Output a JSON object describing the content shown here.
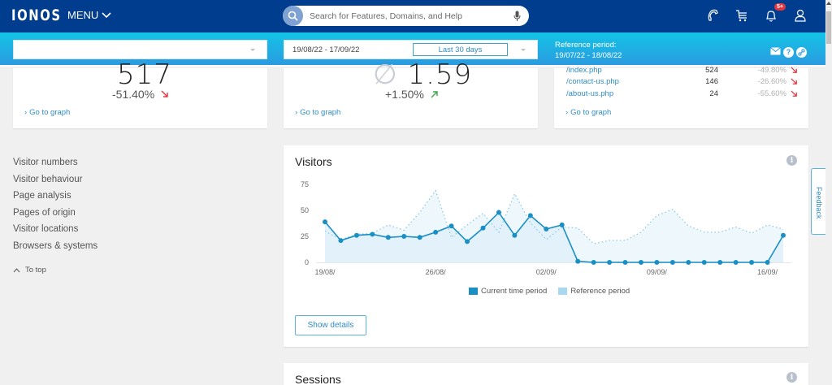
{
  "header": {
    "logo": "IONOS",
    "menu_label": "MENU",
    "search_placeholder": "Search for Features, Domains, and Help",
    "notification_badge": "5+",
    "icons": [
      "phone-icon",
      "cart-icon",
      "bell-icon",
      "user-icon"
    ]
  },
  "filters": {
    "site_select_value": "",
    "date_range": "19/08/22 - 17/09/22",
    "period_label": "Last 30 days",
    "reference_label": "Reference period:",
    "reference_range": "19/07/22 - 18/08/22",
    "icons": [
      "mail-icon",
      "help-icon",
      "link-icon"
    ]
  },
  "summary_cards": [
    {
      "value": "517",
      "change": "-51.40%",
      "trend": "down",
      "link": "Go to graph"
    },
    {
      "prefix": "∅",
      "value": "1.59",
      "change": "+1.50%",
      "trend": "up",
      "link": "Go to graph"
    },
    {
      "pages": [
        {
          "url": "/index.php",
          "count": "524",
          "change": "-49.80%",
          "trend": "down"
        },
        {
          "url": "/contact-us.php",
          "count": "146",
          "change": "-26.60%",
          "trend": "down"
        },
        {
          "url": "/about-us.php",
          "count": "24",
          "change": "-55.60%",
          "trend": "down"
        }
      ],
      "link": "Go to graph"
    }
  ],
  "sidenav": {
    "items": [
      "Visitor numbers",
      "Visitor behaviour",
      "Page analysis",
      "Pages of origin",
      "Visitor locations",
      "Browsers & systems"
    ],
    "to_top": "To top"
  },
  "visitors_card": {
    "title": "Visitors",
    "show_details": "Show details"
  },
  "sessions_card": {
    "title": "Sessions"
  },
  "feedback_label": "Feedback",
  "colors": {
    "header_bg": "#003d8f",
    "filter_gradient_top": "#13c4e6",
    "filter_gradient_bottom": "#2a9be0",
    "link": "#2f8dc8",
    "current_series": "#1a8fc4",
    "reference_series": "#a8d8ee",
    "down": "#e1363f",
    "up": "#3aa845"
  },
  "chart_data": {
    "type": "line",
    "title": "Visitors",
    "xlabel": "",
    "ylabel": "",
    "ylim": [
      0,
      75
    ],
    "yticks": [
      0,
      25,
      50,
      75
    ],
    "xtick_labels": [
      "19/08/",
      "26/08/",
      "02/09/",
      "09/09/",
      "16/09/"
    ],
    "xtick_indices": [
      0,
      7,
      14,
      21,
      28
    ],
    "grid": false,
    "legend_position": "bottom",
    "x": [
      "19/08",
      "20/08",
      "21/08",
      "22/08",
      "23/08",
      "24/08",
      "25/08",
      "26/08",
      "27/08",
      "28/08",
      "29/08",
      "30/08",
      "31/08",
      "01/09",
      "02/09",
      "03/09",
      "04/09",
      "05/09",
      "06/09",
      "07/09",
      "08/09",
      "09/09",
      "10/09",
      "11/09",
      "12/09",
      "13/09",
      "14/09",
      "15/09",
      "16/09",
      "17/09"
    ],
    "series": [
      {
        "name": "Current time period",
        "style": "solid line with markers, filled area",
        "values": [
          39,
          21,
          26,
          27,
          24,
          25,
          24,
          29,
          35,
          20,
          33,
          48,
          26,
          45,
          32,
          36,
          1,
          0,
          0,
          0,
          0,
          0,
          0,
          0,
          0,
          0,
          0,
          0,
          0,
          26
        ]
      },
      {
        "name": "Reference period",
        "style": "dotted line, filled area",
        "values": [
          30,
          22,
          27,
          28,
          36,
          31,
          48,
          69,
          24,
          36,
          47,
          29,
          66,
          38,
          22,
          34,
          33,
          18,
          21,
          21,
          29,
          45,
          51,
          35,
          29,
          29,
          34,
          28,
          36,
          32
        ]
      }
    ]
  }
}
